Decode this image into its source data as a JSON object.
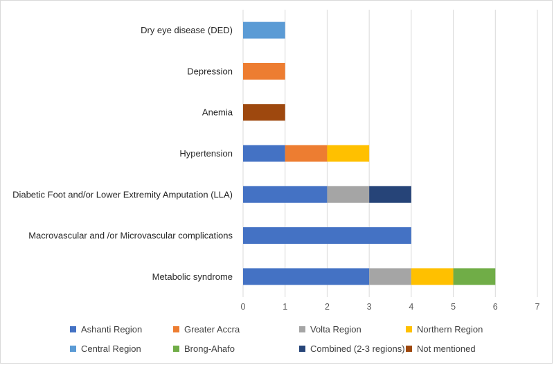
{
  "chart_data": {
    "type": "bar",
    "orientation": "horizontal",
    "stacked": true,
    "title": "",
    "xlabel": "",
    "ylabel": "",
    "xlim": [
      0,
      7
    ],
    "x_ticks": [
      "0",
      "1",
      "2",
      "3",
      "4",
      "5",
      "6",
      "7"
    ],
    "grid": true,
    "legend_position": "bottom",
    "categories": [
      "Dry eye disease (DED)",
      "Depression",
      "Anemia",
      "Hypertension",
      "Diabetic Foot and/or Lower Extremity Amputation (LLA)",
      "Macrovascular and /or Microvascular complications",
      "Metabolic syndrome"
    ],
    "series": [
      {
        "name": "Ashanti Region",
        "color": "#4472C4",
        "values": [
          0,
          0,
          0,
          1,
          2,
          4,
          3
        ]
      },
      {
        "name": "Greater Accra",
        "color": "#ED7D31",
        "values": [
          0,
          1,
          0,
          1,
          0,
          0,
          0
        ]
      },
      {
        "name": "Volta Region",
        "color": "#A5A5A5",
        "values": [
          0,
          0,
          0,
          0,
          1,
          0,
          1
        ]
      },
      {
        "name": "Northern Region",
        "color": "#FFC000",
        "values": [
          0,
          0,
          0,
          1,
          0,
          0,
          1
        ]
      },
      {
        "name": "Central Region",
        "color": "#5B9BD5",
        "values": [
          1,
          0,
          0,
          0,
          0,
          0,
          0
        ]
      },
      {
        "name": "Brong-Ahafo",
        "color": "#70AD47",
        "values": [
          0,
          0,
          0,
          0,
          0,
          0,
          1
        ]
      },
      {
        "name": "Combined (2-3 regions)",
        "color": "#264478",
        "values": [
          0,
          0,
          0,
          0,
          1,
          0,
          0
        ]
      },
      {
        "name": "Not mentioned",
        "color": "#9E480E",
        "values": [
          0,
          0,
          1,
          0,
          0,
          0,
          0
        ]
      }
    ]
  }
}
